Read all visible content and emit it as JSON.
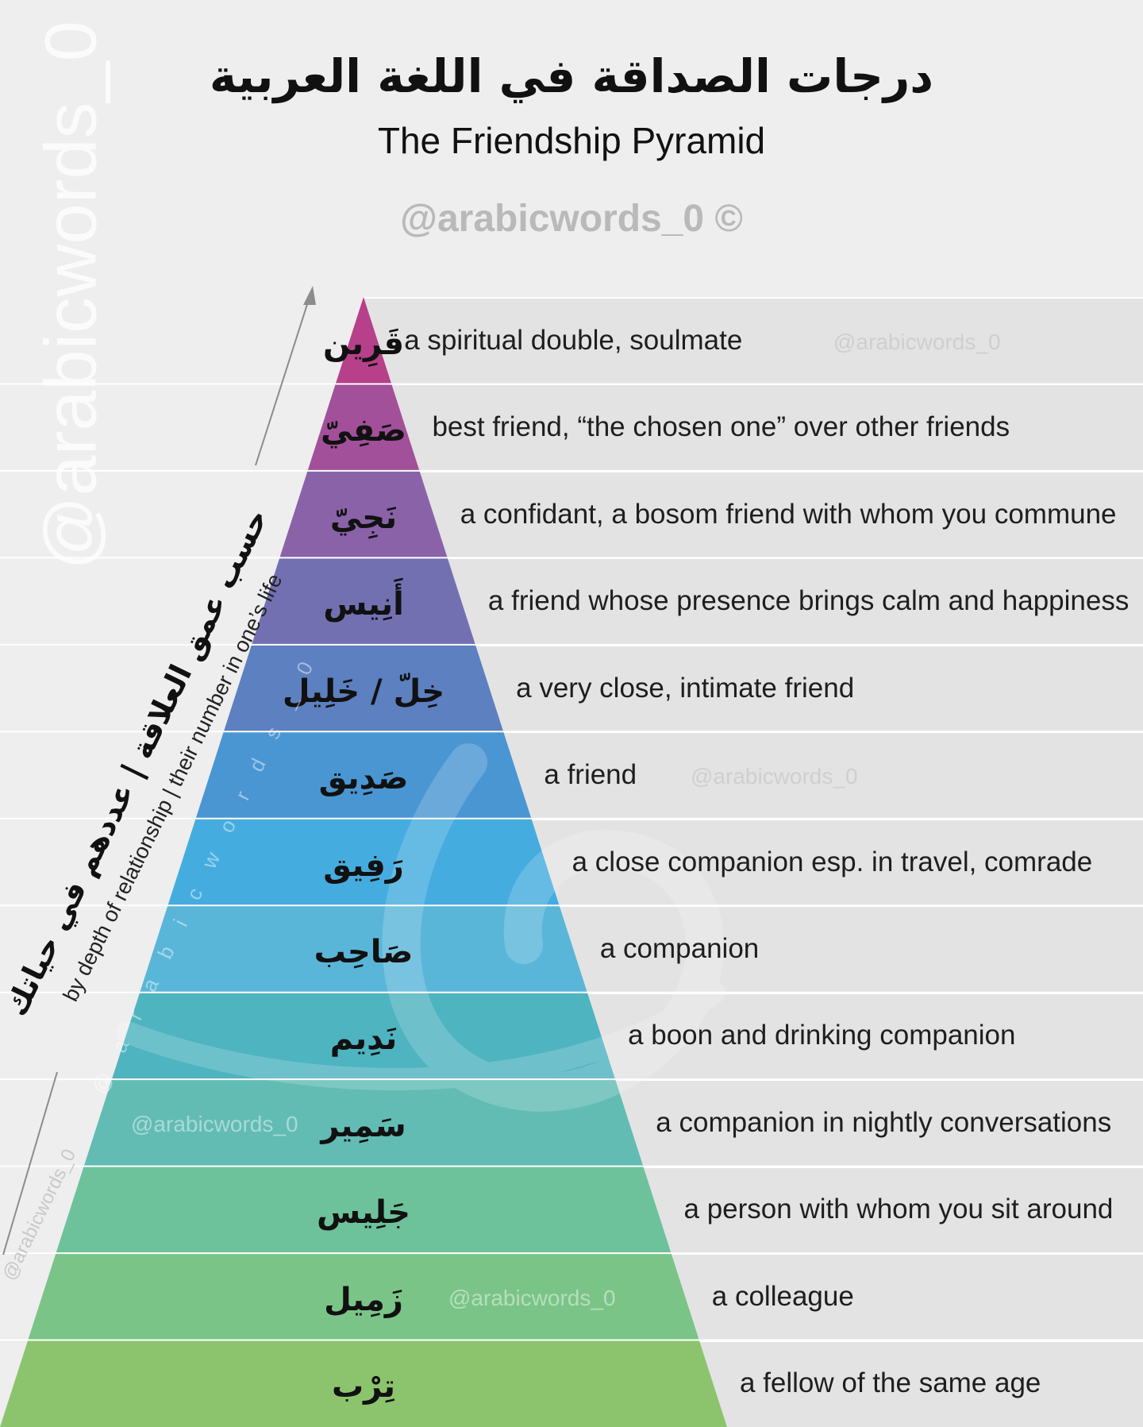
{
  "header": {
    "title_ar": "درجات الصداقة في اللغة العربية",
    "title_en": "The Friendship Pyramid",
    "handle": "@arabicwords_0 ©"
  },
  "watermarks": {
    "vertical_big": "@arabicwords_0",
    "row_wm": "@arabicwords_0",
    "spaced": "@ a r a b i c w o r d s _ 0"
  },
  "axis": {
    "arabic": "حسب عمق العلاقة | عددهم في حياتك",
    "english": "by depth of relationship | their number in one’s life"
  },
  "pyramid": {
    "colors": {
      "top": "#c0357f",
      "upper": "#8a5aa4",
      "middle": "#4aa6dc",
      "lower": "#54b3a8",
      "bottom": "#8dc46a"
    },
    "levels": [
      {
        "word": "قَرِين",
        "meaning": "a spiritual double, soulmate",
        "color": "#b7408a"
      },
      {
        "word": "صَفِيّ",
        "meaning": "best friend, “the chosen one” over other friends",
        "color": "#a2509a"
      },
      {
        "word": "نَجِيّ",
        "meaning": "a confidant, a bosom friend with whom you commune",
        "color": "#8a62a8"
      },
      {
        "word": "أَنِيس",
        "meaning": "a friend whose presence brings calm and happiness",
        "color": "#7370b2"
      },
      {
        "word": "خِلّ / خَلِيل",
        "meaning": "a very close, intimate friend",
        "color": "#5c80c0"
      },
      {
        "word": "صَدِيق",
        "meaning": "a friend",
        "color": "#4a96d2"
      },
      {
        "word": "رَفِيق",
        "meaning": "a close companion esp. in travel, comrade",
        "color": "#45acdf"
      },
      {
        "word": "صَاحِب",
        "meaning": "a companion",
        "color": "#5ab6d8"
      },
      {
        "word": "نَدِيم",
        "meaning": "a boon and drinking companion",
        "color": "#4eb4c0"
      },
      {
        "word": "سَمِير",
        "meaning": "a companion in nightly conversations",
        "color": "#62bcb4"
      },
      {
        "word": "جَلِيس",
        "meaning": "a person with whom you sit around",
        "color": "#6dc29c"
      },
      {
        "word": "زَمِيل",
        "meaning": "a colleague",
        "color": "#7ac487"
      },
      {
        "word": "تِرْب",
        "meaning": "a fellow of the same age",
        "color": "#8cc46e"
      }
    ]
  }
}
